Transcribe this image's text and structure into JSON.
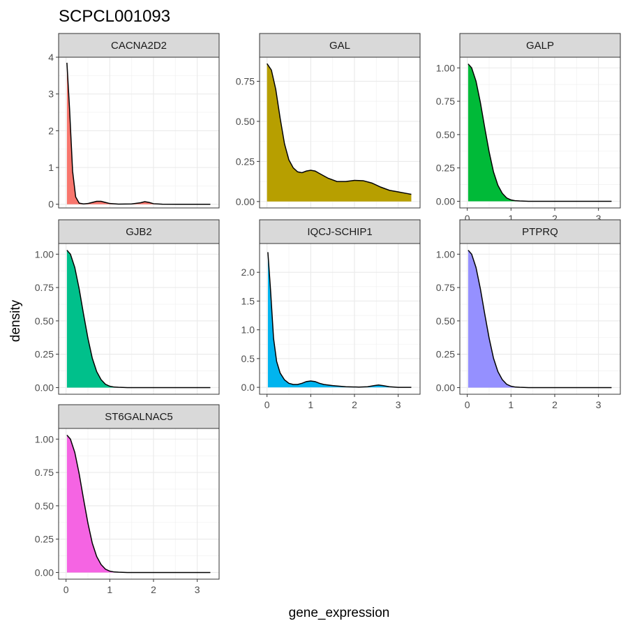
{
  "chart_data": {
    "type": "area",
    "title": "SCPCL001093",
    "xlabel": "gene_expression",
    "ylabel": "density",
    "xlim": [
      -0.17,
      3.5
    ],
    "x_ticks": [
      0,
      1,
      2,
      3
    ],
    "grid": true,
    "legend": "none",
    "facets": [
      {
        "name": "CACNA2D2",
        "color": "#F8766D",
        "ylim": [
          -0.1,
          4.0
        ],
        "y_ticks": [
          0,
          1,
          2,
          3,
          4
        ],
        "x_axis_shown": false,
        "x": [
          0.02,
          0.08,
          0.15,
          0.22,
          0.3,
          0.4,
          0.5,
          0.6,
          0.7,
          0.8,
          0.9,
          1.0,
          1.2,
          1.5,
          1.7,
          1.8,
          1.9,
          2.0,
          2.2,
          2.6,
          3.0,
          3.3
        ],
        "y": [
          3.85,
          2.6,
          0.9,
          0.2,
          0.03,
          0.01,
          0.02,
          0.05,
          0.08,
          0.08,
          0.05,
          0.02,
          0.005,
          0.01,
          0.04,
          0.07,
          0.05,
          0.015,
          0.003,
          0.0,
          0.0,
          0.0
        ]
      },
      {
        "name": "GAL",
        "color": "#B79F00",
        "ylim": [
          -0.04,
          0.9
        ],
        "y_ticks": [
          0.0,
          0.25,
          0.5,
          0.75
        ],
        "x_axis_shown": false,
        "x": [
          0.0,
          0.1,
          0.2,
          0.3,
          0.4,
          0.5,
          0.6,
          0.7,
          0.8,
          0.9,
          1.0,
          1.1,
          1.2,
          1.4,
          1.6,
          1.8,
          2.0,
          2.2,
          2.4,
          2.6,
          2.8,
          3.0,
          3.2,
          3.3
        ],
        "y": [
          0.86,
          0.82,
          0.7,
          0.52,
          0.36,
          0.26,
          0.21,
          0.185,
          0.18,
          0.19,
          0.195,
          0.19,
          0.175,
          0.145,
          0.125,
          0.125,
          0.132,
          0.13,
          0.115,
          0.09,
          0.07,
          0.06,
          0.05,
          0.045
        ]
      },
      {
        "name": "GALP",
        "color": "#00BA38",
        "ylim": [
          -0.05,
          1.08
        ],
        "y_ticks": [
          0.0,
          0.25,
          0.5,
          0.75,
          1.0
        ],
        "x_axis_shown": true,
        "x": [
          0.02,
          0.1,
          0.2,
          0.3,
          0.4,
          0.5,
          0.6,
          0.7,
          0.8,
          0.9,
          1.0,
          1.1,
          1.2,
          1.4,
          1.6,
          1.8,
          2.0,
          2.5,
          3.0,
          3.3
        ],
        "y": [
          1.03,
          1.0,
          0.9,
          0.74,
          0.55,
          0.37,
          0.22,
          0.12,
          0.06,
          0.025,
          0.01,
          0.004,
          0.002,
          0.0,
          0.0,
          0.0,
          0.0,
          0.0,
          0.0,
          0.0
        ]
      },
      {
        "name": "GJB2",
        "color": "#00C08B",
        "ylim": [
          -0.05,
          1.08
        ],
        "y_ticks": [
          0.0,
          0.25,
          0.5,
          0.75,
          1.0
        ],
        "x_axis_shown": false,
        "x": [
          0.02,
          0.1,
          0.2,
          0.3,
          0.4,
          0.5,
          0.6,
          0.7,
          0.8,
          0.9,
          1.0,
          1.1,
          1.2,
          1.4,
          1.6,
          1.8,
          2.0,
          2.5,
          3.0,
          3.3
        ],
        "y": [
          1.03,
          1.0,
          0.9,
          0.74,
          0.55,
          0.37,
          0.22,
          0.12,
          0.06,
          0.025,
          0.01,
          0.004,
          0.002,
          0.0,
          0.0,
          0.0,
          0.0,
          0.0,
          0.0,
          0.0
        ]
      },
      {
        "name": "IQCJ-SCHIP1",
        "color": "#00B4EF",
        "ylim": [
          -0.12,
          2.5
        ],
        "y_ticks": [
          0.0,
          0.5,
          1.0,
          1.5,
          2.0
        ],
        "x_axis_shown": true,
        "x": [
          0.02,
          0.08,
          0.15,
          0.22,
          0.3,
          0.4,
          0.5,
          0.6,
          0.7,
          0.8,
          0.9,
          1.0,
          1.1,
          1.2,
          1.3,
          1.5,
          1.8,
          2.1,
          2.3,
          2.45,
          2.55,
          2.65,
          2.8,
          3.0,
          3.3
        ],
        "y": [
          2.35,
          1.7,
          0.85,
          0.45,
          0.25,
          0.13,
          0.07,
          0.05,
          0.05,
          0.07,
          0.1,
          0.11,
          0.1,
          0.07,
          0.05,
          0.03,
          0.01,
          0.005,
          0.01,
          0.03,
          0.04,
          0.03,
          0.01,
          0.0,
          0.0
        ]
      },
      {
        "name": "PTPRQ",
        "color": "#9590FF",
        "ylim": [
          -0.05,
          1.08
        ],
        "y_ticks": [
          0.0,
          0.25,
          0.5,
          0.75,
          1.0
        ],
        "x_axis_shown": true,
        "x": [
          0.02,
          0.1,
          0.2,
          0.3,
          0.4,
          0.5,
          0.6,
          0.7,
          0.8,
          0.9,
          1.0,
          1.1,
          1.2,
          1.4,
          1.6,
          1.8,
          2.0,
          2.5,
          3.0,
          3.3
        ],
        "y": [
          1.03,
          1.0,
          0.9,
          0.74,
          0.55,
          0.37,
          0.22,
          0.12,
          0.06,
          0.025,
          0.01,
          0.004,
          0.002,
          0.0,
          0.0,
          0.0,
          0.0,
          0.0,
          0.0,
          0.0
        ]
      },
      {
        "name": "ST6GALNAC5",
        "color": "#F564E3",
        "ylim": [
          -0.05,
          1.08
        ],
        "y_ticks": [
          0.0,
          0.25,
          0.5,
          0.75,
          1.0
        ],
        "x_axis_shown": true,
        "x": [
          0.02,
          0.1,
          0.2,
          0.3,
          0.4,
          0.5,
          0.6,
          0.7,
          0.8,
          0.9,
          1.0,
          1.1,
          1.2,
          1.4,
          1.6,
          1.8,
          2.0,
          2.5,
          3.0,
          3.3
        ],
        "y": [
          1.03,
          1.0,
          0.9,
          0.74,
          0.55,
          0.37,
          0.22,
          0.12,
          0.06,
          0.025,
          0.01,
          0.004,
          0.002,
          0.0,
          0.0,
          0.0,
          0.0,
          0.0,
          0.0,
          0.0
        ]
      }
    ]
  }
}
